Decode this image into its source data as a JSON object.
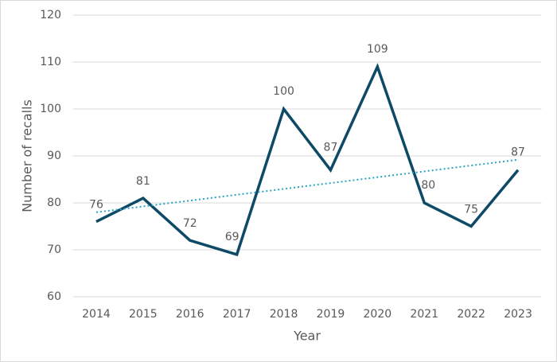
{
  "chart_data": {
    "type": "line",
    "x_label": "Year",
    "y_label": "Number of recalls",
    "categories": [
      "2014",
      "2015",
      "2016",
      "2017",
      "2018",
      "2019",
      "2020",
      "2021",
      "2022",
      "2023"
    ],
    "series": [
      {
        "color": "#0e4a66",
        "values": [
          76,
          81,
          72,
          69,
          100,
          87,
          109,
          80,
          75,
          87
        ]
      }
    ],
    "trendline": {
      "values": [
        78,
        89.2
      ],
      "color": "#2aa5c6",
      "style": "dotted"
    },
    "ylim": [
      60,
      120
    ],
    "yticks": [
      60,
      70,
      80,
      90,
      100,
      110,
      120
    ],
    "grid": true,
    "data_labels": true
  }
}
